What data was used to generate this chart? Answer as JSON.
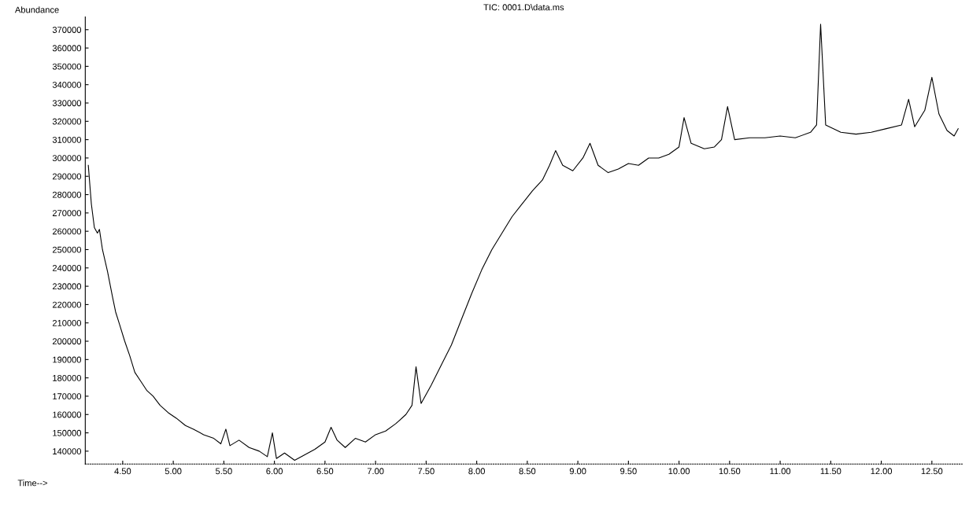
{
  "chart_data": {
    "type": "line",
    "title": "TIC: 0001.D\\data.ms",
    "xlabel": "Time-->",
    "ylabel": "Abundance",
    "x": [
      4.16,
      4.19,
      4.22,
      4.25,
      4.27,
      4.3,
      4.35,
      4.4,
      4.43,
      4.47,
      4.52,
      4.57,
      4.62,
      4.68,
      4.74,
      4.8,
      4.87,
      4.95,
      5.03,
      5.12,
      5.2,
      5.3,
      5.4,
      5.47,
      5.52,
      5.56,
      5.65,
      5.75,
      5.85,
      5.93,
      5.98,
      6.02,
      6.1,
      6.2,
      6.3,
      6.4,
      6.5,
      6.56,
      6.62,
      6.7,
      6.8,
      6.9,
      7.0,
      7.1,
      7.2,
      7.3,
      7.36,
      7.4,
      7.45,
      7.55,
      7.65,
      7.75,
      7.85,
      7.95,
      8.05,
      8.15,
      8.25,
      8.35,
      8.45,
      8.55,
      8.65,
      8.72,
      8.78,
      8.85,
      8.95,
      9.05,
      9.12,
      9.2,
      9.3,
      9.4,
      9.5,
      9.6,
      9.7,
      9.8,
      9.9,
      10.0,
      10.05,
      10.12,
      10.25,
      10.35,
      10.42,
      10.48,
      10.55,
      10.7,
      10.85,
      11.0,
      11.15,
      11.3,
      11.36,
      11.4,
      11.45,
      11.6,
      11.75,
      11.9,
      12.05,
      12.2,
      12.27,
      12.33,
      12.43,
      12.5,
      12.57,
      12.65,
      12.72,
      12.76
    ],
    "series": [
      {
        "color": "#000000",
        "values": [
          296000,
          275000,
          262000,
          259000,
          261000,
          250000,
          238000,
          224000,
          216000,
          209000,
          200000,
          192000,
          183000,
          178000,
          173000,
          170000,
          165000,
          161000,
          158000,
          154000,
          152000,
          149000,
          147000,
          144000,
          152000,
          143000,
          146000,
          142000,
          140000,
          137000,
          150000,
          136000,
          139000,
          135000,
          138000,
          141000,
          145000,
          153000,
          146000,
          142000,
          147000,
          145000,
          149000,
          151000,
          155000,
          160000,
          165000,
          186000,
          166000,
          176000,
          187000,
          198000,
          212000,
          226000,
          239000,
          250000,
          259000,
          268000,
          275000,
          282000,
          288000,
          296000,
          304000,
          296000,
          293000,
          300000,
          308000,
          296000,
          292000,
          294000,
          297000,
          296000,
          300000,
          300000,
          302000,
          306000,
          322000,
          308000,
          305000,
          306000,
          310000,
          328000,
          310000,
          311000,
          311000,
          312000,
          311000,
          314000,
          318000,
          373000,
          318000,
          314000,
          313000,
          314000,
          316000,
          318000,
          332000,
          317000,
          326000,
          344000,
          324000,
          315000,
          312000,
          316000
        ]
      }
    ],
    "xlim": [
      4.13,
      12.8
    ],
    "ylim": [
      133000,
      377000
    ],
    "xticks": [
      {
        "value": 4.5,
        "label": "4.50"
      },
      {
        "value": 5.0,
        "label": "5.00"
      },
      {
        "value": 5.5,
        "label": "5.50"
      },
      {
        "value": 6.0,
        "label": "6.00"
      },
      {
        "value": 6.5,
        "label": "6.50"
      },
      {
        "value": 7.0,
        "label": "7.00"
      },
      {
        "value": 7.5,
        "label": "7.50"
      },
      {
        "value": 8.0,
        "label": "8.00"
      },
      {
        "value": 8.5,
        "label": "8.50"
      },
      {
        "value": 9.0,
        "label": "9.00"
      },
      {
        "value": 9.5,
        "label": "9.50"
      },
      {
        "value": 10.0,
        "label": "10.00"
      },
      {
        "value": 10.5,
        "label": "10.50"
      },
      {
        "value": 11.0,
        "label": "11.00"
      },
      {
        "value": 11.5,
        "label": "11.50"
      },
      {
        "value": 12.0,
        "label": "12.00"
      },
      {
        "value": 12.5,
        "label": "12.50"
      }
    ],
    "yticks": [
      140000,
      150000,
      160000,
      170000,
      180000,
      190000,
      200000,
      210000,
      220000,
      230000,
      240000,
      250000,
      260000,
      270000,
      280000,
      290000,
      300000,
      310000,
      320000,
      330000,
      340000,
      350000,
      360000,
      370000
    ],
    "grid": false,
    "legend": false,
    "marker": "none",
    "line_style": "solid"
  }
}
